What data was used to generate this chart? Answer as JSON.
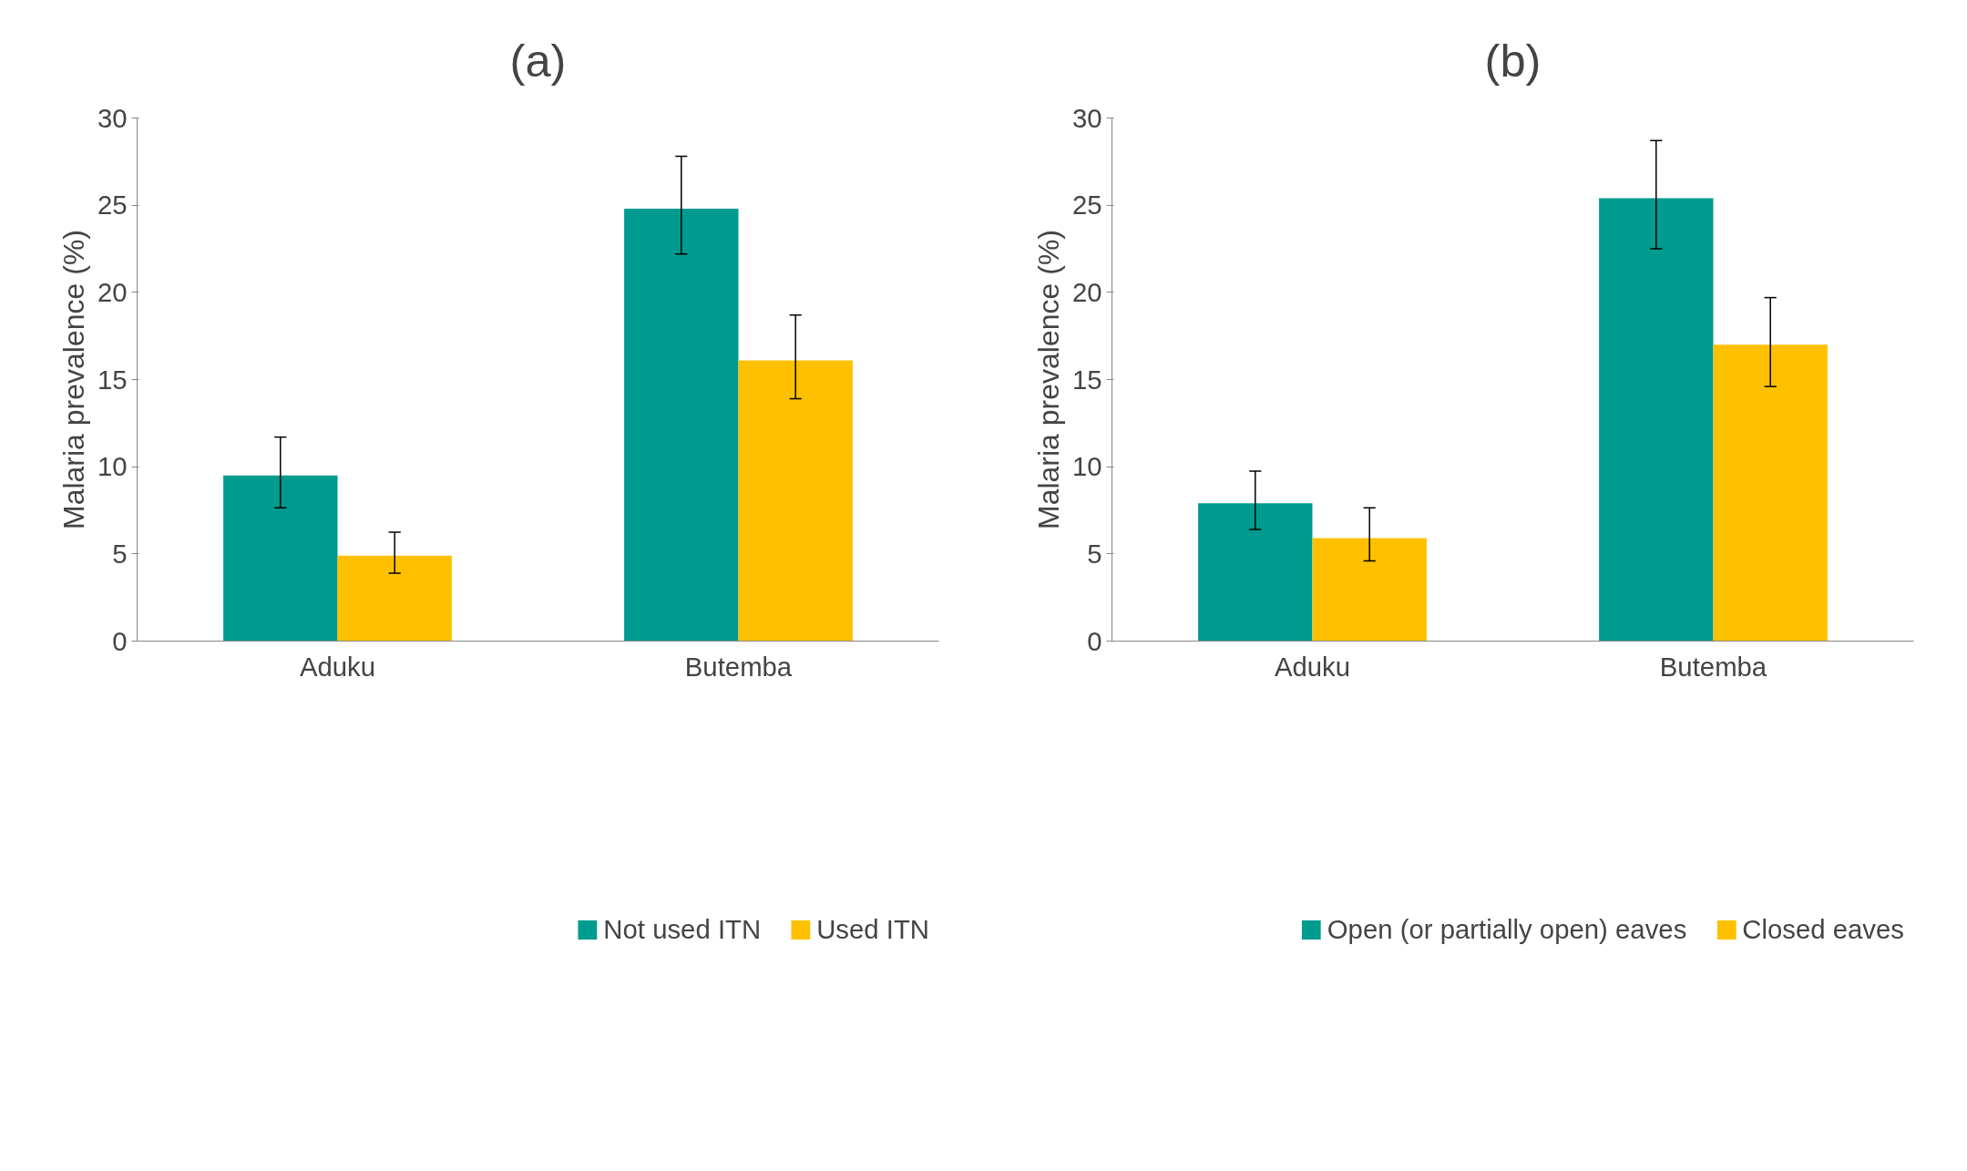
{
  "chart_data": [
    {
      "type": "bar",
      "title": "(a)",
      "ylabel": "Malaria prevalence (%)",
      "categories": [
        "Aduku",
        "Butemba"
      ],
      "ylim": [
        0,
        30
      ],
      "yticks": [
        0,
        5,
        10,
        15,
        20,
        25,
        30
      ],
      "grid": false,
      "legend": "bottom",
      "series": [
        {
          "name": "Not used ITN",
          "color": "#009b8f",
          "values": [
            9.5,
            24.8
          ],
          "errors": [
            [
              7.65,
              11.7
            ],
            [
              22.2,
              27.8
            ]
          ]
        },
        {
          "name": "Used ITN",
          "color": "#ffc000",
          "values": [
            4.9,
            16.1
          ],
          "errors": [
            [
              3.9,
              6.25
            ],
            [
              13.9,
              18.7
            ]
          ]
        }
      ]
    },
    {
      "type": "bar",
      "title": "(b)",
      "ylabel": "Malaria prevalence (%)",
      "categories": [
        "Aduku",
        "Butemba"
      ],
      "ylim": [
        0,
        30
      ],
      "yticks": [
        0,
        5,
        10,
        15,
        20,
        25,
        30
      ],
      "grid": false,
      "legend": "bottom",
      "series": [
        {
          "name": "Open (or partially open) eaves",
          "color": "#009b8f",
          "values": [
            7.9,
            25.4
          ],
          "errors": [
            [
              6.4,
              9.75
            ],
            [
              22.5,
              28.7
            ]
          ]
        },
        {
          "name": "Closed eaves",
          "color": "#ffc000",
          "values": [
            5.9,
            17.0
          ],
          "errors": [
            [
              4.6,
              7.65
            ],
            [
              14.6,
              19.7
            ]
          ]
        }
      ]
    }
  ]
}
